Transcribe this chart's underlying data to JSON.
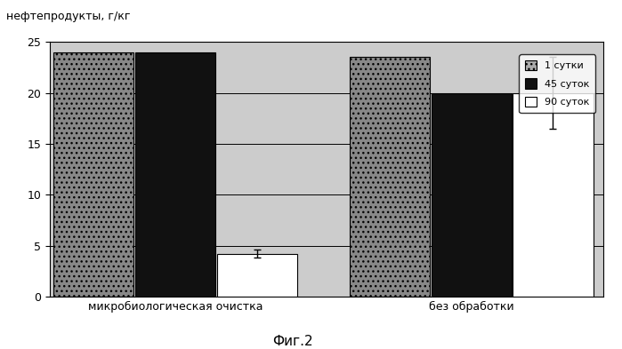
{
  "groups": [
    "микробиологическая очистка",
    "без обработки"
  ],
  "series": [
    "1 сутки",
    "45 суток",
    "90 суток"
  ],
  "values": [
    [
      24.0,
      24.0,
      4.2
    ],
    [
      23.5,
      20.0,
      20.0
    ]
  ],
  "errors": [
    [
      0,
      0,
      0.4
    ],
    [
      0,
      0,
      3.5
    ]
  ],
  "bar_colors": [
    "#888888",
    "#111111",
    "#ffffff"
  ],
  "bar_hatches": [
    "...",
    "",
    ""
  ],
  "bar_edgecolors": [
    "#000000",
    "#000000",
    "#000000"
  ],
  "ylim": [
    0,
    25
  ],
  "yticks": [
    0,
    5,
    10,
    15,
    20,
    25
  ],
  "background_color": "#ffffff",
  "plot_area_color": "#cccccc",
  "grid_color": "#000000",
  "bar_width": 0.13,
  "xlabel_fontsize": 9,
  "tick_fontsize": 9,
  "legend_fontsize": 8,
  "caption": "Фиг.2",
  "y_label": "нефтепродукты, г/кг",
  "group_centers": [
    0.25,
    0.72
  ]
}
